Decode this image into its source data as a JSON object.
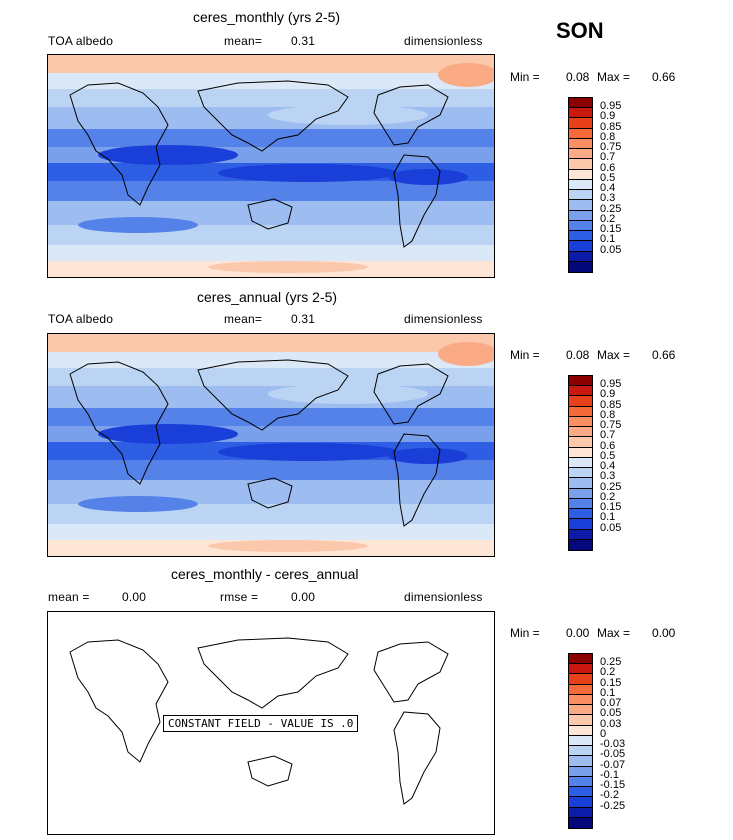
{
  "season": "SON",
  "panels": [
    {
      "title": "ceres_monthly (yrs 2-5)",
      "left_label": "TOA albedo",
      "center_label": "mean=",
      "center_value": "0.31",
      "right_label": "dimensionless",
      "min_label": "Min =",
      "min_value": "0.08",
      "max_label": "Max =",
      "max_value": "0.66",
      "colorbar": {
        "labels": [
          "0.95",
          "0.9",
          "0.85",
          "0.8",
          "0.75",
          "0.7",
          "0.6",
          "0.5",
          "0.4",
          "0.3",
          "0.25",
          "0.2",
          "0.15",
          "0.1",
          "0.05"
        ],
        "colors": [
          "#8b0000",
          "#c8180f",
          "#e8401a",
          "#f56a3a",
          "#f98f62",
          "#fbaa86",
          "#fcc8ac",
          "#fde6d6",
          "#dbe8f7",
          "#bcd4f3",
          "#9dbcf0",
          "#7aa0ec",
          "#5482e8",
          "#2d5ee3",
          "#1a3ed8",
          "#0c1ca8",
          "#05087a"
        ]
      }
    },
    {
      "title": "ceres_annual (yrs 2-5)",
      "left_label": "TOA albedo",
      "center_label": "mean=",
      "center_value": "0.31",
      "right_label": "dimensionless",
      "min_label": "Min =",
      "min_value": "0.08",
      "max_label": "Max =",
      "max_value": "0.66",
      "colorbar": {
        "labels": [
          "0.95",
          "0.9",
          "0.85",
          "0.8",
          "0.75",
          "0.7",
          "0.6",
          "0.5",
          "0.4",
          "0.3",
          "0.25",
          "0.2",
          "0.15",
          "0.1",
          "0.05"
        ],
        "colors": [
          "#8b0000",
          "#c8180f",
          "#e8401a",
          "#f56a3a",
          "#f98f62",
          "#fbaa86",
          "#fcc8ac",
          "#fde6d6",
          "#dbe8f7",
          "#bcd4f3",
          "#9dbcf0",
          "#7aa0ec",
          "#5482e8",
          "#2d5ee3",
          "#1a3ed8",
          "#0c1ca8",
          "#05087a"
        ]
      }
    },
    {
      "title": "ceres_monthly - ceres_annual",
      "left_label": "mean =",
      "left_value": "0.00",
      "center_label": "rmse =",
      "center_value": "0.00",
      "right_label": "dimensionless",
      "min_label": "Min =",
      "min_value": "0.00",
      "max_label": "Max =",
      "max_value": "0.00",
      "constant_text": "CONSTANT FIELD - VALUE IS .0",
      "colorbar": {
        "labels": [
          "0.25",
          "0.2",
          "0.15",
          "0.1",
          "0.07",
          "0.05",
          "0.03",
          "0",
          "-0.03",
          "-0.05",
          "-0.07",
          "-0.1",
          "-0.15",
          "-0.2",
          "-0.25"
        ],
        "colors": [
          "#8b0000",
          "#c8180f",
          "#e8401a",
          "#f56a3a",
          "#f98f62",
          "#fbaa86",
          "#fcc8ac",
          "#fde6d6",
          "#dbe8f7",
          "#bcd4f3",
          "#9dbcf0",
          "#7aa0ec",
          "#5482e8",
          "#2d5ee3",
          "#1a3ed8",
          "#0c1ca8",
          "#05087a"
        ]
      }
    }
  ]
}
